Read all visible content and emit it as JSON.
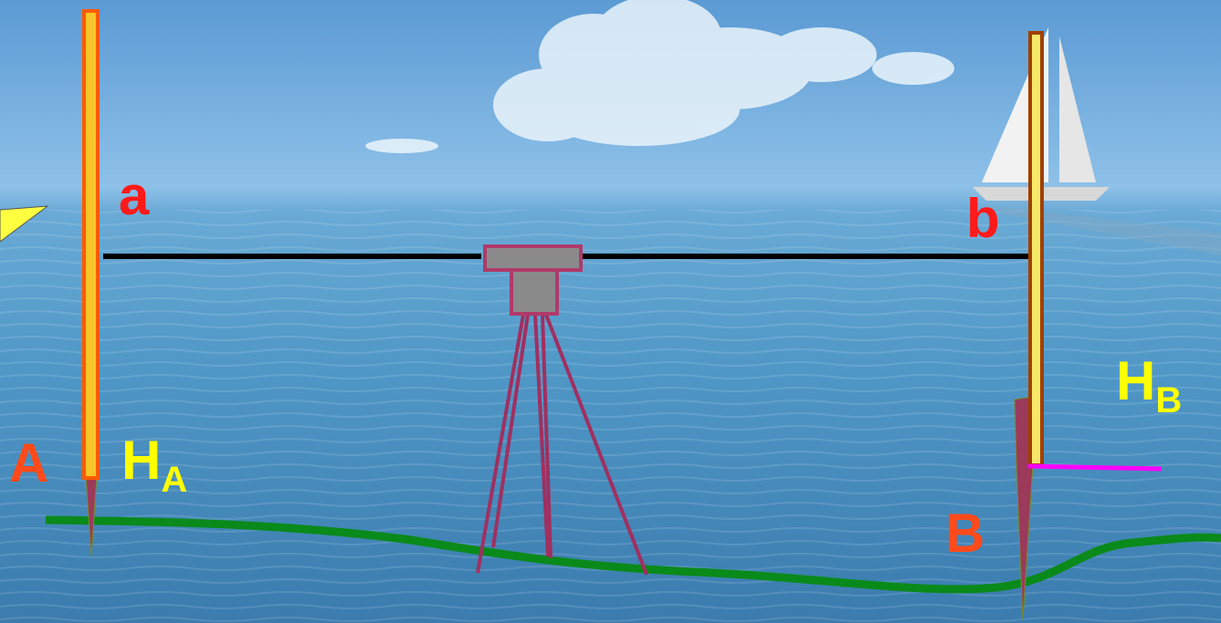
{
  "labels": {
    "a": "a",
    "b": "b",
    "point_a": "A",
    "point_b": "B",
    "height_a_main": "H",
    "height_a_sub": "A",
    "height_b_main": "H",
    "height_b_sub": "B"
  },
  "colors": {
    "sky_top": "#5f9fd6",
    "sea": "#4a90c0",
    "sea_bottom": "#3d7fb0",
    "label_red": "#ff1a1a",
    "label_orange": "#ff4a1a",
    "label_yellow": "#ffff00",
    "staff_fill": "#f7c52a",
    "staff_border": "#ff5a00",
    "staff_b_border": "#a04000",
    "stake": "#9b3a5a",
    "ground": "#0a8a1a",
    "sight_line": "#000000",
    "instrument": "#8a8a8a",
    "instrument_border": "#b03a6a",
    "tripod": "#a03060",
    "benchmark_line": "#ff00ff",
    "pointer": "#ffff40"
  },
  "icons": {
    "pointer": "arrow-pointer-icon",
    "cloud": "cloud-icon",
    "sailboat": "sailboat-icon",
    "level_instrument": "level-instrument-icon",
    "tripod": "tripod-icon"
  }
}
